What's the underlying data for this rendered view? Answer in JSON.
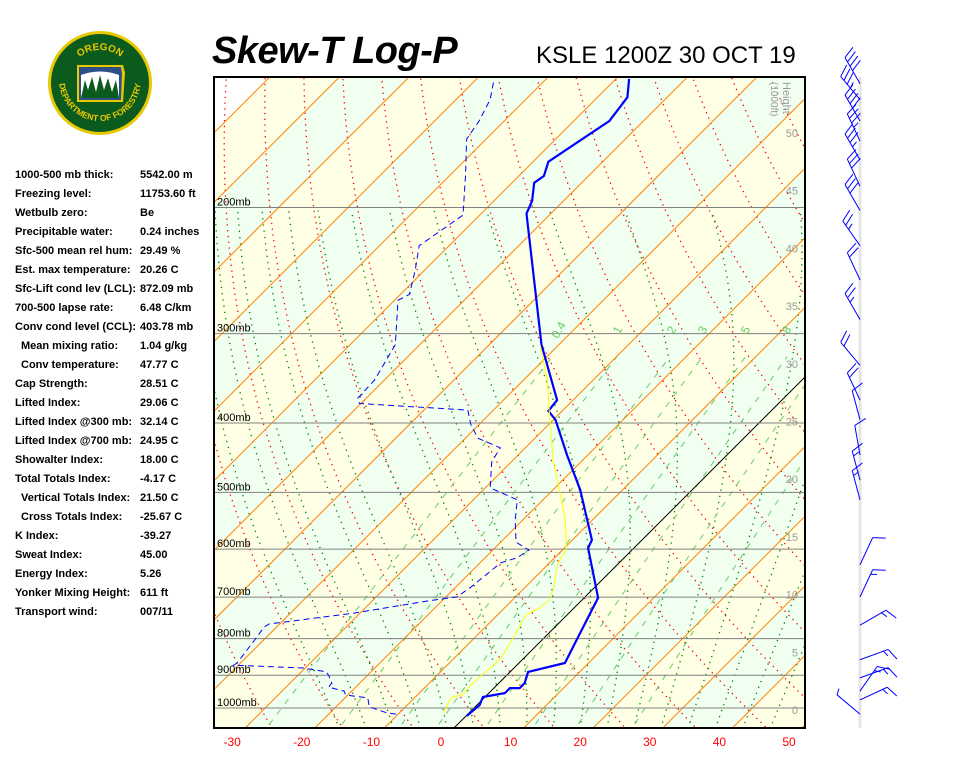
{
  "header": {
    "title": "Skew-T Log-P",
    "station": "KSLE 1200Z 30 OCT 19"
  },
  "logo": {
    "top_text": "OREGON",
    "bottom_text": "DEPARTMENT OF FORESTRY",
    "colors": {
      "ring": "#e8c800",
      "field": "#0b5a1e"
    }
  },
  "stats": [
    {
      "label": "1000-500 mb thick:",
      "value": "5542.00 m"
    },
    {
      "label": "Freezing level:",
      "value": "11753.60 ft"
    },
    {
      "label": "Wetbulb zero:",
      "value": "Be"
    },
    {
      "label": "Precipitable water:",
      "value": "0.24 inches"
    },
    {
      "label": "Sfc-500 mean rel hum:",
      "value": "29.49 %"
    },
    {
      "label": "Est. max temperature:",
      "value": "20.26 C"
    },
    {
      "label": "Sfc-Lift cond lev (LCL):",
      "value": "872.09 mb"
    },
    {
      "label": "700-500 lapse rate:",
      "value": "6.48 C/km"
    },
    {
      "label": "Conv cond level (CCL):",
      "value": "403.78 mb"
    },
    {
      "label": "Mean mixing ratio:",
      "value": "1.04 g/kg",
      "indent": true
    },
    {
      "label": "Conv temperature:",
      "value": "47.77 C",
      "indent": true
    },
    {
      "label": "Cap Strength:",
      "value": "28.51 C"
    },
    {
      "label": "Lifted Index:",
      "value": "29.06 C"
    },
    {
      "label": "Lifted Index @300 mb:",
      "value": "32.14 C"
    },
    {
      "label": "Lifted Index @700 mb:",
      "value": "24.95 C"
    },
    {
      "label": "Showalter Index:",
      "value": "18.00 C"
    },
    {
      "label": "Total Totals Index:",
      "value": "-4.17 C"
    },
    {
      "label": "Vertical Totals Index:",
      "value": "21.50 C",
      "indent": true
    },
    {
      "label": "Cross Totals Index:",
      "value": "-25.67 C",
      "indent": true
    },
    {
      "label": "K Index:",
      "value": "-39.27"
    },
    {
      "label": "Sweat Index:",
      "value": "45.00"
    },
    {
      "label": "Energy Index:",
      "value": "5.26"
    },
    {
      "label": "Yonker Mixing Height:",
      "value": "611 ft"
    },
    {
      "label": "Transport wind:",
      "value": "007/11"
    }
  ],
  "chart_data": {
    "type": "line",
    "title": "Skew-T Log-P",
    "x_axis": {
      "ticks": [
        -30,
        -20,
        -10,
        0,
        10,
        20,
        30,
        40,
        50
      ],
      "range_C": [
        -30,
        50
      ],
      "skewed": true,
      "tick_color": "#ff0000"
    },
    "y_axis": {
      "scale": "log",
      "range_mb": [
        1056,
        130
      ],
      "isobars": [
        1000,
        900,
        800,
        700,
        600,
        500,
        400,
        300,
        200
      ],
      "isobar_labels": [
        "1000mb",
        "900mb",
        "800mb",
        "700mb",
        "600mb",
        "500mb",
        "400mb",
        "300mb",
        "200mb"
      ]
    },
    "height_axis": {
      "label": "Height",
      "unit": "(1000ft)",
      "ticks": [
        0,
        5,
        10,
        15,
        20,
        25,
        30,
        35,
        40,
        45,
        50
      ]
    },
    "mixing_ratio_labels": [
      "0.4",
      "1",
      "2",
      "3",
      "5",
      "8"
    ],
    "mixing_ratio_values": [
      0.4,
      1,
      2,
      3,
      5,
      8,
      12,
      20
    ],
    "background": {
      "band_a": "#f0fff0",
      "band_b": "#ffffe6",
      "isotherm": "#ff8000",
      "dry_adiabat": "#ff0000",
      "moist_adiabat": "#008000",
      "mixing_ratio": "#66cc66",
      "isobar": "#808080",
      "zero_isotherm": "#000000"
    },
    "series": [
      {
        "role": "temperature",
        "color": "#0000ff",
        "style": "solid",
        "p": [
          1016,
          981,
          956,
          944,
          929,
          929,
          914,
          882,
          857,
          695,
          592,
          577,
          491,
          439,
          392,
          381,
          368,
          308,
          202,
          194,
          183,
          179,
          171,
          150,
          139,
          131
        ],
        "t": [
          0.1,
          0.4,
          -0.3,
          2.3,
          2.3,
          3.7,
          3.7,
          2.6,
          6.6,
          2.0,
          -6.6,
          -7.2,
          -16.1,
          -23.0,
          -29.7,
          -32.0,
          -32.3,
          -42.5,
          -63.5,
          -64.5,
          -66.8,
          -66.4,
          -67.8,
          -64.9,
          -65.7,
          -68.1
        ]
      },
      {
        "role": "dewpoint",
        "color": "#0000ff",
        "style": "dashed",
        "p": [
          1010,
          1006,
          987,
          959,
          956,
          950,
          938,
          926,
          914,
          894,
          882,
          871,
          863,
          857,
          788,
          763,
          756,
          730,
          702,
          693,
          671,
          621,
          611,
          596,
          581,
          541,
          507,
          488,
          449,
          429,
          416,
          398,
          380,
          372,
          366,
          345,
          308,
          267,
          262,
          242,
          224,
          203,
          178,
          159,
          150,
          140,
          131
        ],
        "t": [
          -10.3,
          -11.8,
          -15.2,
          -16.7,
          -17.8,
          -20.3,
          -21.1,
          -23.9,
          -24.0,
          -25.4,
          -26.4,
          -30.2,
          -40.7,
          -40.5,
          -41.4,
          -41.8,
          -41.5,
          -30.9,
          -22.1,
          -18.4,
          -17.8,
          -17.0,
          -15.4,
          -14.8,
          -17.8,
          -21.1,
          -23.7,
          -29.3,
          -32.8,
          -33.6,
          -38.2,
          -41.2,
          -43.7,
          -60.2,
          -61.2,
          -61.4,
          -63.5,
          -69.5,
          -68.7,
          -71.4,
          -74.3,
          -72.4,
          -77.9,
          -82.8,
          -83.6,
          -85.1,
          -87.5
        ]
      },
      {
        "role": "wetbulb",
        "color": "#ffff00",
        "style": "solid",
        "p": [
          1006,
          965,
          956,
          950,
          926,
          897,
          868,
          843,
          788,
          734,
          718,
          700,
          671,
          625,
          596,
          577,
          541,
          499,
          446,
          380,
          345,
          308
        ],
        "t": [
          -3.6,
          -4.7,
          -4.7,
          -3.6,
          -3.7,
          -3.7,
          -3.4,
          -3.3,
          -4.5,
          -5.9,
          -5.0,
          -4.7,
          -5.9,
          -8.6,
          -9.5,
          -10.9,
          -13.9,
          -18.2,
          -24.3,
          -32.0,
          -36.6,
          -42.7
        ]
      }
    ],
    "wind_barbs": {
      "color": "#0000ff",
      "p": [
        1010,
        965,
        938,
        899,
        848,
        759,
        693,
        625,
        507,
        476,
        439,
        392,
        368,
        329,
        284,
        250,
        224,
        200,
        185,
        170,
        160,
        150,
        140,
        133
      ],
      "dir": [
        310,
        65,
        35,
        70,
        70,
        60,
        25,
        25,
        345,
        345,
        350,
        345,
        335,
        320,
        330,
        335,
        325,
        330,
        335,
        330,
        335,
        330,
        320,
        330
      ],
      "spd": [
        5,
        15,
        15,
        15,
        15,
        15,
        15,
        10,
        15,
        15,
        10,
        10,
        20,
        20,
        25,
        20,
        25,
        30,
        30,
        35,
        35,
        40,
        35,
        40
      ]
    }
  }
}
